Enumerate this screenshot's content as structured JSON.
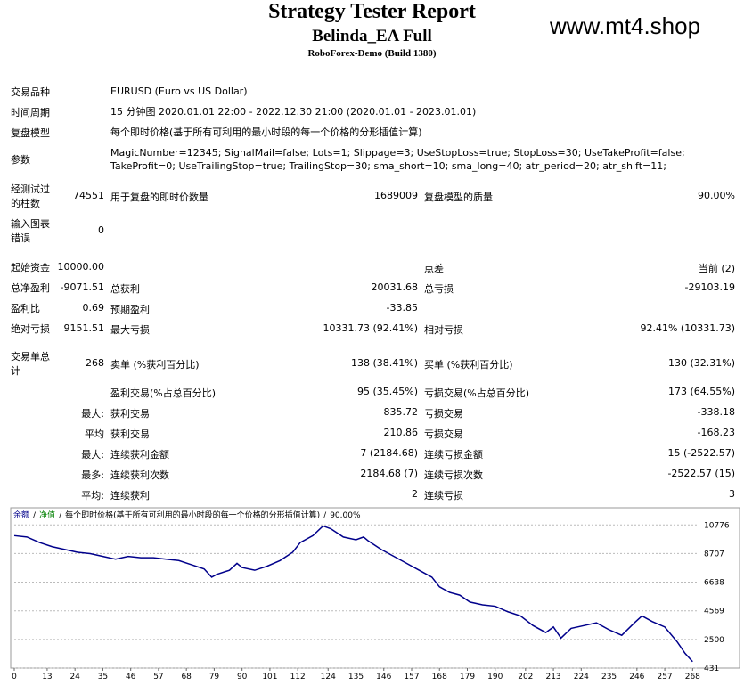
{
  "header": {
    "title": "Strategy Tester Report",
    "subtitle": "Belinda_EA Full",
    "build": "RoboForex-Demo (Build 1380)",
    "watermark": "www.mt4.shop"
  },
  "info": [
    {
      "label": "交易品种",
      "value": "EURUSD (Euro vs US Dollar)"
    },
    {
      "label": "时间周期",
      "value": "15 分钟图 2020.01.01 22:00 - 2022.12.30 21:00 (2020.01.01 - 2023.01.01)"
    },
    {
      "label": "复盘模型",
      "value": "每个即时价格(基于所有可利用的最小时段的每一个价格的分形插值计算)"
    },
    {
      "label": "参数",
      "value": "MagicNumber=12345; SignalMail=false; Lots=1; Slippage=3; UseStopLoss=true; StopLoss=30; UseTakeProfit=false; TakeProfit=0; UseTrailingStop=true; TrailingStop=30; sma_short=10; sma_long=40; atr_period=20; atr_shift=11;"
    }
  ],
  "stats": [
    {
      "a": "经测试过的柱数",
      "av": "74551",
      "b": "用于复盘的即时价数量",
      "bv": "1689009",
      "c": "复盘模型的质量",
      "cv": "90.00%"
    },
    {
      "a": "输入图表错误",
      "av": "0"
    },
    {
      "a": "起始资金",
      "av": "10000.00",
      "c": "点差",
      "cv": "当前 (2)"
    },
    {
      "a": "总净盈利",
      "av": "-9071.51",
      "b": "总获利",
      "bv": "20031.68",
      "c": "总亏损",
      "cv": "-29103.19"
    },
    {
      "a": "盈利比",
      "av": "0.69",
      "b": "预期盈利",
      "bv": "-33.85"
    },
    {
      "a": "绝对亏损",
      "av": "9151.51",
      "b": "最大亏损",
      "bv": "10331.73 (92.41%)",
      "c": "相对亏损",
      "cv": "92.41% (10331.73)"
    },
    {
      "a": "交易单总计",
      "av": "268",
      "b": "卖单 (%获利百分比)",
      "bv": "138 (38.41%)",
      "c": "买单 (%获利百分比)",
      "cv": "130 (32.31%)"
    },
    {
      "b": "盈利交易(%占总百分比)",
      "bv": "95 (35.45%)",
      "c": "亏损交易(%占总百分比)",
      "cv": "173 (64.55%)"
    },
    {
      "av": "最大:",
      "b": "获利交易",
      "bv": "835.72",
      "c": "亏损交易",
      "cv": "-338.18"
    },
    {
      "av": "平均",
      "b": "获利交易",
      "bv": "210.86",
      "c": "亏损交易",
      "cv": "-168.23"
    },
    {
      "av": "最大:",
      "b": "连续获利金额",
      "bv": "7 (2184.68)",
      "c": "连续亏损金额",
      "cv": "15 (-2522.57)"
    },
    {
      "av": "最多:",
      "b": "连续获利次数",
      "bv": "2184.68 (7)",
      "c": "连续亏损次数",
      "cv": "-2522.57 (15)"
    },
    {
      "av": "平均:",
      "b": "连续获利",
      "bv": "2",
      "c": "连续亏损",
      "cv": "3"
    }
  ],
  "chart_data": {
    "type": "line",
    "legend": {
      "separator": "/",
      "equity": "净值",
      "equity_color": "#008000",
      "model": "每个即时价格(基于所有可利用的最小时段的每一个价格的分形插值计算)",
      "quality": "90.00%"
    },
    "x": [
      0,
      5,
      10,
      15,
      20,
      25,
      30,
      35,
      40,
      45,
      50,
      55,
      60,
      65,
      70,
      75,
      78,
      80,
      85,
      88,
      90,
      95,
      100,
      105,
      110,
      113,
      118,
      122,
      125,
      130,
      135,
      138,
      140,
      145,
      150,
      155,
      160,
      165,
      168,
      172,
      176,
      180,
      185,
      190,
      195,
      200,
      205,
      210,
      213,
      216,
      220,
      225,
      230,
      235,
      240,
      245,
      248,
      252,
      257,
      262,
      265,
      268
    ],
    "series": [
      {
        "name": "余额",
        "color": "#00008b",
        "values": [
          10000,
          9900,
          9500,
          9200,
          9000,
          8800,
          8700,
          8500,
          8300,
          8500,
          8400,
          8400,
          8300,
          8200,
          7900,
          7600,
          7000,
          7200,
          7500,
          8000,
          7700,
          7500,
          7800,
          8200,
          8800,
          9500,
          10000,
          10700,
          10500,
          9900,
          9700,
          9900,
          9600,
          9000,
          8500,
          8000,
          7500,
          7000,
          6300,
          5900,
          5700,
          5200,
          5000,
          4900,
          4500,
          4200,
          3500,
          3000,
          3400,
          2600,
          3300,
          3500,
          3700,
          3200,
          2800,
          3700,
          4200,
          3800,
          3400,
          2300,
          1500,
          900
        ]
      }
    ],
    "xlim": [
      0,
      270
    ],
    "xticks": [
      0,
      13,
      24,
      35,
      46,
      57,
      68,
      79,
      90,
      101,
      112,
      124,
      135,
      146,
      157,
      168,
      179,
      190,
      202,
      213,
      224,
      235,
      246,
      257,
      268
    ],
    "ylim": [
      431,
      11500
    ],
    "yticks": [
      10776,
      8707,
      6638,
      4569,
      2500,
      431
    ],
    "grid": true
  }
}
